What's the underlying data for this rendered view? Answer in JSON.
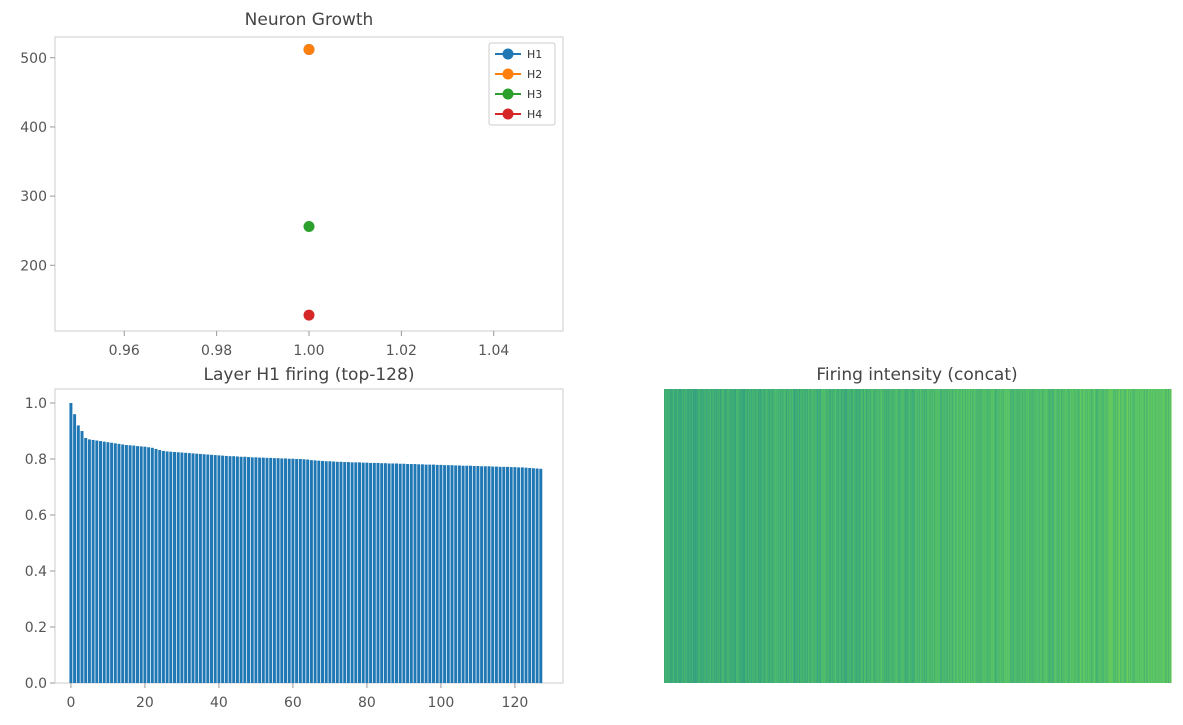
{
  "colors": {
    "H1": "#1f77b4",
    "H2": "#ff7f0e",
    "H3": "#2ca02c",
    "H4": "#d62728",
    "bar": "#1f77b4",
    "axis_frame": "#cccccc",
    "tick_text": "#555555",
    "title_text": "#444444"
  },
  "chart_data": [
    {
      "type": "line",
      "title": "Neuron Growth",
      "xlabel": "",
      "ylabel": "",
      "xlim": [
        0.945,
        1.055
      ],
      "ylim": [
        105,
        530
      ],
      "xticks": [
        0.96,
        0.98,
        1.0,
        1.02,
        1.04
      ],
      "xtick_labels": [
        "0.96",
        "0.98",
        "1.00",
        "1.02",
        "1.04"
      ],
      "yticks": [
        200,
        300,
        400,
        500
      ],
      "ytick_labels": [
        "200",
        "300",
        "400",
        "500"
      ],
      "grid": false,
      "legend": "top-right",
      "marker": "circle",
      "series": [
        {
          "name": "H1",
          "x": [
            1.0
          ],
          "y": [
            512
          ]
        },
        {
          "name": "H2",
          "x": [
            1.0
          ],
          "y": [
            512
          ]
        },
        {
          "name": "H3",
          "x": [
            1.0
          ],
          "y": [
            256
          ]
        },
        {
          "name": "H4",
          "x": [
            1.0
          ],
          "y": [
            128
          ]
        }
      ]
    },
    {
      "type": "bar",
      "title": "Layer H1 firing (top-128)",
      "xlabel": "",
      "ylabel": "",
      "xlim": [
        -4.3,
        133.0
      ],
      "ylim": [
        0.0,
        1.05
      ],
      "xticks": [
        0,
        20,
        40,
        60,
        80,
        100,
        120
      ],
      "xtick_labels": [
        "0",
        "20",
        "40",
        "60",
        "80",
        "100",
        "120"
      ],
      "yticks": [
        0.0,
        0.2,
        0.4,
        0.6,
        0.8,
        1.0
      ],
      "ytick_labels": [
        "0.0",
        "0.2",
        "0.4",
        "0.6",
        "0.8",
        "1.0"
      ],
      "grid": false,
      "x": [
        0,
        1,
        2,
        3,
        4,
        5,
        6,
        7,
        8,
        9,
        10,
        11,
        12,
        13,
        14,
        15,
        16,
        17,
        18,
        19,
        20,
        21,
        22,
        23,
        24,
        25,
        26,
        27,
        28,
        29,
        30,
        31,
        32,
        33,
        34,
        35,
        36,
        37,
        38,
        39,
        40,
        41,
        42,
        43,
        44,
        45,
        46,
        47,
        48,
        49,
        50,
        51,
        52,
        53,
        54,
        55,
        56,
        57,
        58,
        59,
        60,
        61,
        62,
        63,
        64,
        65,
        66,
        67,
        68,
        69,
        70,
        71,
        72,
        73,
        74,
        75,
        76,
        77,
        78,
        79,
        80,
        81,
        82,
        83,
        84,
        85,
        86,
        87,
        88,
        89,
        90,
        91,
        92,
        93,
        94,
        95,
        96,
        97,
        98,
        99,
        100,
        101,
        102,
        103,
        104,
        105,
        106,
        107,
        108,
        109,
        110,
        111,
        112,
        113,
        114,
        115,
        116,
        117,
        118,
        119,
        120,
        121,
        122,
        123,
        124,
        125,
        126,
        127
      ],
      "values": [
        1.0,
        0.96,
        0.92,
        0.9,
        0.875,
        0.87,
        0.868,
        0.866,
        0.864,
        0.862,
        0.86,
        0.858,
        0.856,
        0.854,
        0.852,
        0.85,
        0.849,
        0.848,
        0.846,
        0.845,
        0.844,
        0.842,
        0.84,
        0.836,
        0.832,
        0.829,
        0.827,
        0.826,
        0.825,
        0.824,
        0.823,
        0.822,
        0.821,
        0.82,
        0.819,
        0.818,
        0.817,
        0.816,
        0.815,
        0.814,
        0.813,
        0.812,
        0.811,
        0.81,
        0.81,
        0.809,
        0.808,
        0.808,
        0.807,
        0.806,
        0.806,
        0.805,
        0.805,
        0.804,
        0.804,
        0.803,
        0.803,
        0.802,
        0.802,
        0.801,
        0.801,
        0.8,
        0.8,
        0.799,
        0.798,
        0.796,
        0.795,
        0.794,
        0.793,
        0.792,
        0.792,
        0.791,
        0.79,
        0.79,
        0.789,
        0.789,
        0.788,
        0.788,
        0.788,
        0.787,
        0.787,
        0.786,
        0.786,
        0.786,
        0.785,
        0.785,
        0.784,
        0.784,
        0.784,
        0.783,
        0.783,
        0.782,
        0.782,
        0.782,
        0.781,
        0.781,
        0.78,
        0.78,
        0.78,
        0.779,
        0.779,
        0.778,
        0.778,
        0.778,
        0.777,
        0.777,
        0.776,
        0.776,
        0.776,
        0.775,
        0.775,
        0.774,
        0.774,
        0.774,
        0.773,
        0.773,
        0.772,
        0.772,
        0.772,
        0.771,
        0.771,
        0.77,
        0.77,
        0.769,
        0.768,
        0.767,
        0.766,
        0.765
      ]
    },
    {
      "type": "heatmap",
      "title": "Firing intensity (concat)",
      "xlabel": "",
      "ylabel": "",
      "colormap": "viridis",
      "axes_visible": false,
      "columns": 1024,
      "value_range": [
        0.55,
        0.85
      ]
    }
  ]
}
